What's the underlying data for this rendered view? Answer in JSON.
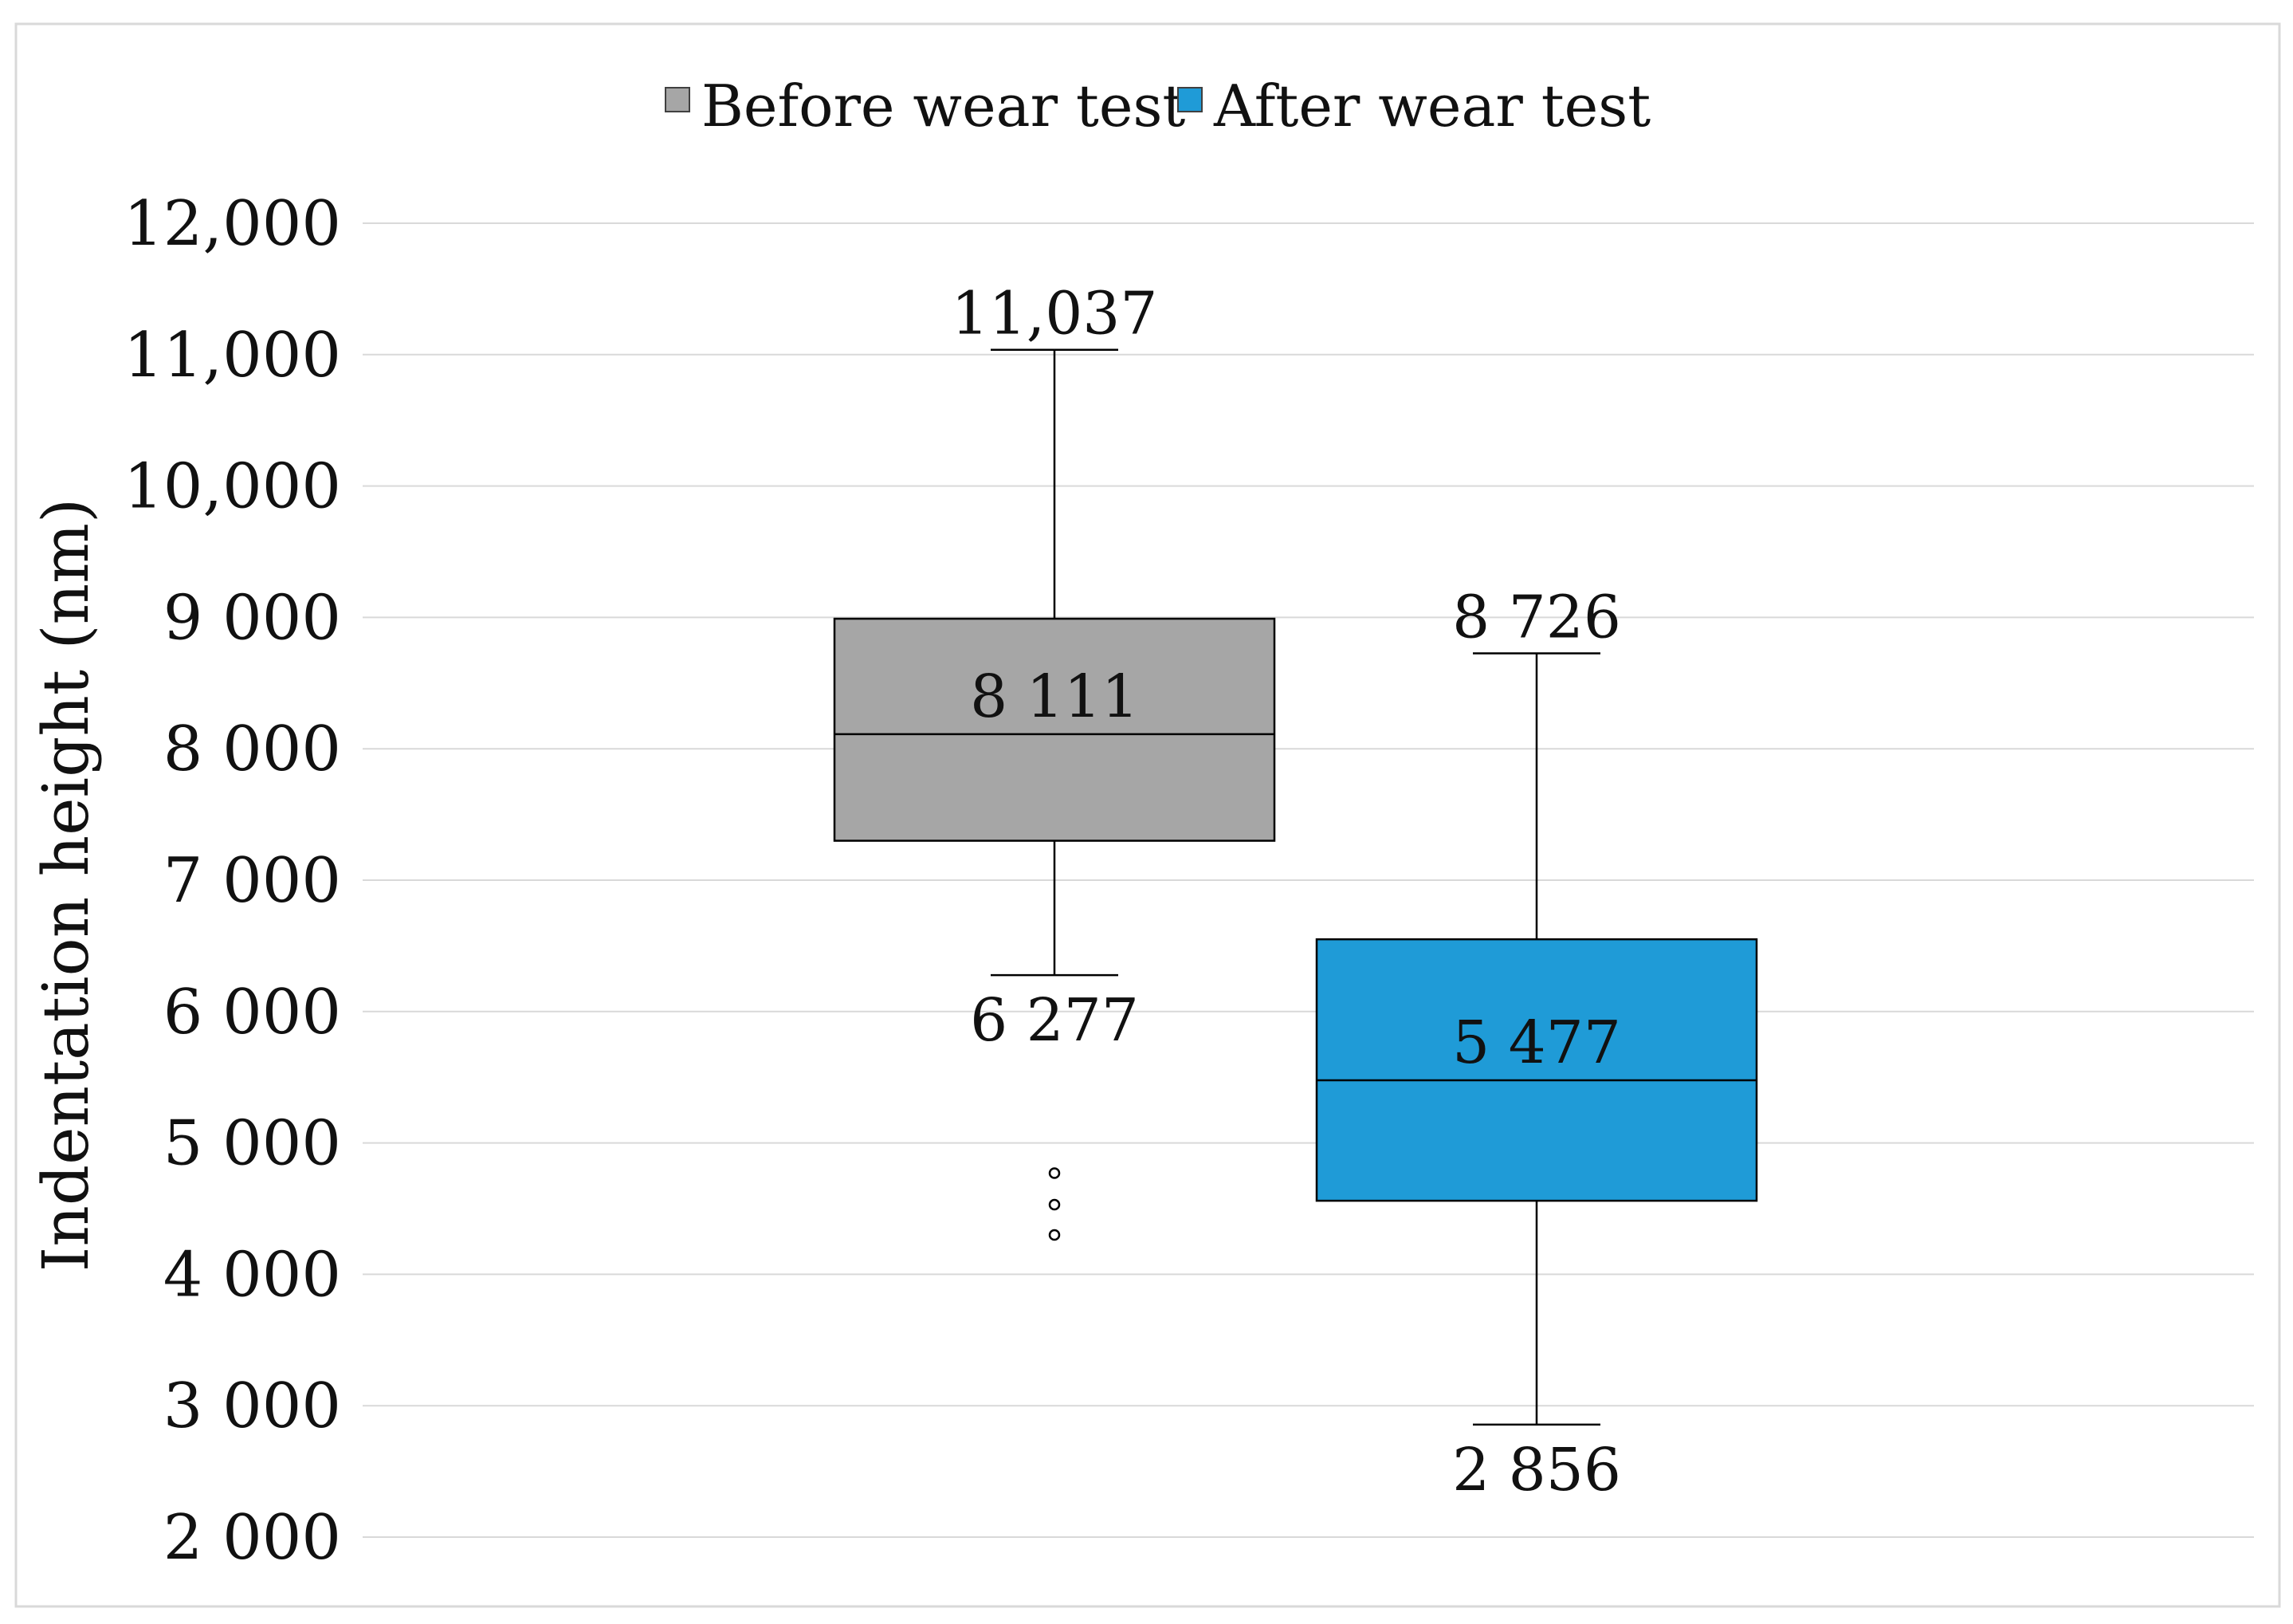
{
  "chart_data": {
    "type": "box",
    "ylabel": "Indentation height (nm)",
    "xlabel": "",
    "ylim": [
      2000,
      12000
    ],
    "yticks": [
      2000,
      3000,
      4000,
      5000,
      6000,
      7000,
      8000,
      9000,
      10000,
      11000,
      12000
    ],
    "ytick_labels": [
      "2 000",
      "3 000",
      "4 000",
      "5 000",
      "6 000",
      "7 000",
      "8 000",
      "9 000",
      "10,000",
      "11,000",
      "12,000"
    ],
    "grid": true,
    "legend_position": "top-center",
    "series": [
      {
        "name": "Before wear test",
        "color": "#a6a6a6",
        "whisker_low": 6277,
        "q1": 7300,
        "median": 8111,
        "q3": 8990,
        "whisker_high": 11037,
        "outliers": [
          4770,
          4530,
          4300
        ],
        "labels": {
          "whisker_high": "11,037",
          "median": "8 111",
          "whisker_low": "6 277"
        }
      },
      {
        "name": "After wear test",
        "color": "#1f9bd7",
        "whisker_low": 2856,
        "q1": 4560,
        "median": 5477,
        "q3": 6550,
        "whisker_high": 8726,
        "outliers": [],
        "labels": {
          "whisker_high": "8 726",
          "median": "5 477",
          "whisker_low": "2 856"
        }
      }
    ]
  }
}
